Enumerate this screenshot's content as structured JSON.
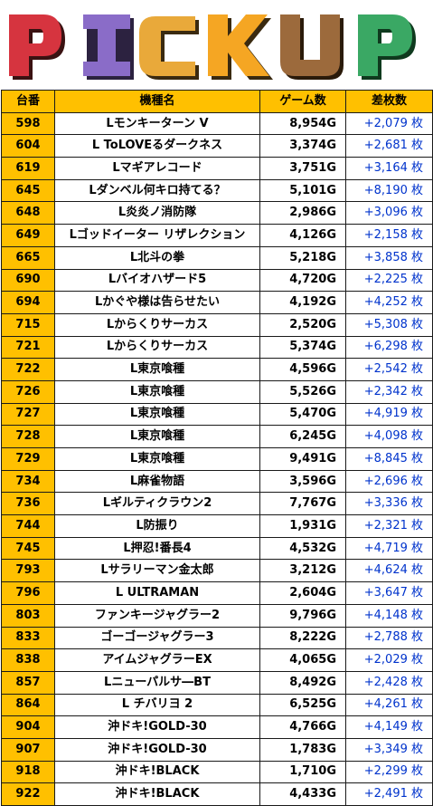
{
  "banner": {
    "letters": [
      {
        "char": "P",
        "color": "#d6343f"
      },
      {
        "char": "I",
        "color": "#8a6cc8"
      },
      {
        "char": "C",
        "color": "#e9a93a"
      },
      {
        "char": "K",
        "color": "#f5a623"
      },
      {
        "char": "U",
        "color": "#9c6a3c"
      },
      {
        "char": "P",
        "color": "#3aa864"
      }
    ]
  },
  "table": {
    "headers": {
      "no": "台番",
      "name": "機種名",
      "games": "ゲーム数",
      "diff": "差枚数"
    },
    "rows": [
      {
        "no": "598",
        "name": "Lモンキーターン V",
        "games": "8,954G",
        "diff": "+2,079 枚"
      },
      {
        "no": "604",
        "name": "L ToLOVEるダークネス",
        "games": "3,374G",
        "diff": "+2,681 枚"
      },
      {
        "no": "619",
        "name": "Lマギアレコード",
        "games": "3,751G",
        "diff": "+3,164 枚"
      },
      {
        "no": "645",
        "name": "Lダンベル何キロ持てる？",
        "games": "5,101G",
        "diff": "+8,190 枚"
      },
      {
        "no": "648",
        "name": "L炎炎ノ消防隊",
        "games": "2,986G",
        "diff": "+3,096 枚"
      },
      {
        "no": "649",
        "name": "Lゴッドイーター リザレクション",
        "games": "4,126G",
        "diff": "+2,158 枚"
      },
      {
        "no": "665",
        "name": "L北斗の拳",
        "games": "5,218G",
        "diff": "+3,858 枚"
      },
      {
        "no": "690",
        "name": "Lバイオハザード5",
        "games": "4,720G",
        "diff": "+2,225 枚"
      },
      {
        "no": "694",
        "name": "Lかぐや様は告らせたい",
        "games": "4,192G",
        "diff": "+4,252 枚"
      },
      {
        "no": "715",
        "name": "Lからくりサーカス",
        "games": "2,520G",
        "diff": "+5,308 枚"
      },
      {
        "no": "721",
        "name": "Lからくりサーカス",
        "games": "5,374G",
        "diff": "+6,298 枚"
      },
      {
        "no": "722",
        "name": "L東京喰種",
        "games": "4,596G",
        "diff": "+2,542 枚"
      },
      {
        "no": "726",
        "name": "L東京喰種",
        "games": "5,526G",
        "diff": "+2,342 枚"
      },
      {
        "no": "727",
        "name": "L東京喰種",
        "games": "5,470G",
        "diff": "+4,919 枚"
      },
      {
        "no": "728",
        "name": "L東京喰種",
        "games": "6,245G",
        "diff": "+4,098 枚"
      },
      {
        "no": "729",
        "name": "L東京喰種",
        "games": "9,491G",
        "diff": "+8,845 枚"
      },
      {
        "no": "734",
        "name": "L麻雀物語",
        "games": "3,596G",
        "diff": "+2,696 枚"
      },
      {
        "no": "736",
        "name": "Lギルティクラウン2",
        "games": "7,767G",
        "diff": "+3,336 枚"
      },
      {
        "no": "744",
        "name": "L防振り",
        "games": "1,931G",
        "diff": "+2,321 枚"
      },
      {
        "no": "745",
        "name": "L押忍!番長4",
        "games": "4,532G",
        "diff": "+4,719 枚"
      },
      {
        "no": "793",
        "name": "Lサラリーマン金太郎",
        "games": "3,212G",
        "diff": "+4,624 枚"
      },
      {
        "no": "796",
        "name": "L ULTRAMAN",
        "games": "2,604G",
        "diff": "+3,647 枚"
      },
      {
        "no": "803",
        "name": "ファンキージャグラー2",
        "games": "9,796G",
        "diff": "+4,148 枚"
      },
      {
        "no": "833",
        "name": "ゴーゴージャグラー3",
        "games": "8,222G",
        "diff": "+2,788 枚"
      },
      {
        "no": "838",
        "name": "アイムジャグラーEX",
        "games": "4,065G",
        "diff": "+2,029 枚"
      },
      {
        "no": "857",
        "name": "Lニューパルサ―BT",
        "games": "8,492G",
        "diff": "+2,428 枚"
      },
      {
        "no": "864",
        "name": "L チバリヨ 2",
        "games": "6,525G",
        "diff": "+4,261 枚"
      },
      {
        "no": "904",
        "name": "沖ドキ!GOLD-30",
        "games": "4,766G",
        "diff": "+4,149 枚"
      },
      {
        "no": "907",
        "name": "沖ドキ!GOLD-30",
        "games": "1,783G",
        "diff": "+3,349 枚"
      },
      {
        "no": "918",
        "name": "沖ドキ!BLACK",
        "games": "1,710G",
        "diff": "+2,299 枚"
      },
      {
        "no": "922",
        "name": "沖ドキ!BLACK",
        "games": "4,433G",
        "diff": "+2,491 枚"
      }
    ]
  }
}
